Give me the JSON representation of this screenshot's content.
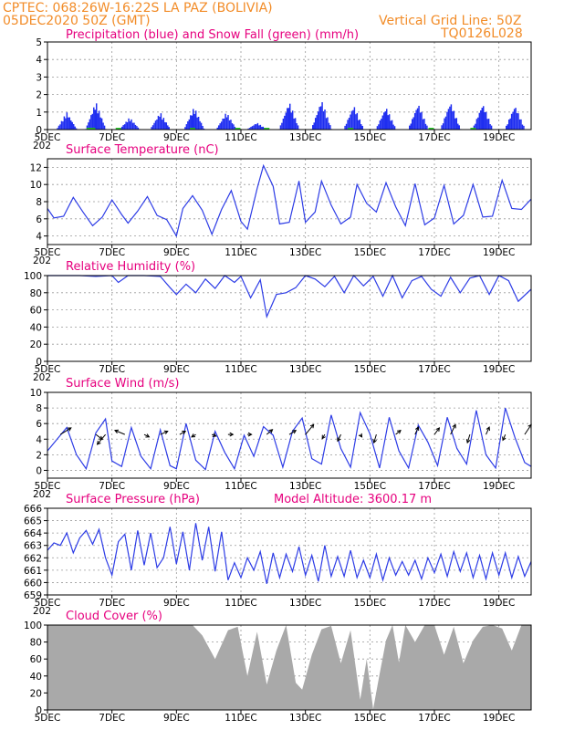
{
  "header": {
    "line1_left": "CPTEC:   068:26W-16:22S   LA PAZ (BOLIVIA)",
    "line2_left": "05DEC2020  50Z  (GMT)",
    "line1_right": "Vertical Grid Line: 50Z",
    "line2_right": "TQ0126L028"
  },
  "colors": {
    "header": "#f28c28",
    "title": "#e6007e",
    "line": "#2d3ce6",
    "precip": "#1f2ef0",
    "snow": "#22c522",
    "cloud": "#a9a9a9"
  },
  "x_axis": {
    "range_days": [
      5,
      20
    ],
    "tick_labels": [
      "5DEC",
      "7DEC",
      "9DEC",
      "11DEC",
      "13DEC",
      "15DEC",
      "17DEC",
      "19DEC"
    ],
    "tick_days": [
      5,
      7,
      9,
      11,
      13,
      15,
      17,
      19
    ],
    "corner_label": "202"
  },
  "chart_data": [
    {
      "type": "bar",
      "title": "Precipitation (blue) and Snow Fall (green) (mm/h)",
      "ylim": [
        0,
        5
      ],
      "yticks": [
        0,
        1,
        2,
        3,
        4,
        5
      ],
      "daily_peak_day": [
        5.6,
        6.5,
        7.55,
        8.5,
        9.55,
        10.55,
        11.5,
        12.5,
        13.5,
        14.5,
        15.5,
        16.5,
        17.5,
        18.5,
        19.5
      ],
      "daily_peak_value": [
        1.0,
        1.6,
        0.7,
        1.0,
        1.3,
        1.0,
        0.4,
        1.6,
        1.7,
        1.4,
        1.3,
        1.5,
        1.6,
        1.5,
        1.4
      ],
      "snow_days": [
        6.3,
        6.4,
        7.2,
        9.5,
        10.9,
        11.8,
        14.4,
        16.9,
        18.2
      ],
      "snow_value": 0.1
    },
    {
      "type": "line",
      "title": "Surface Temperature (nC)",
      "ylim": [
        3,
        13
      ],
      "yticks": [
        4,
        6,
        8,
        10,
        12
      ],
      "x": [
        5.0,
        5.2,
        5.5,
        5.8,
        6.1,
        6.4,
        6.7,
        7.0,
        7.3,
        7.5,
        7.8,
        8.1,
        8.4,
        8.7,
        9.0,
        9.2,
        9.5,
        9.8,
        10.1,
        10.4,
        10.7,
        11.0,
        11.2,
        11.5,
        11.7,
        12.0,
        12.2,
        12.5,
        12.8,
        13.0,
        13.3,
        13.5,
        13.8,
        14.1,
        14.4,
        14.6,
        14.9,
        15.2,
        15.5,
        15.8,
        16.1,
        16.4,
        16.7,
        17.0,
        17.3,
        17.6,
        17.9,
        18.2,
        18.5,
        18.8,
        19.1,
        19.4,
        19.7,
        20.0
      ],
      "y": [
        7.2,
        6.1,
        6.3,
        8.5,
        6.8,
        5.2,
        6.2,
        8.2,
        6.5,
        5.5,
        6.9,
        8.6,
        6.4,
        5.9,
        4.0,
        7.2,
        8.7,
        7.0,
        4.2,
        7.1,
        9.3,
        5.7,
        4.8,
        9.5,
        12.2,
        9.8,
        5.4,
        5.6,
        10.4,
        5.6,
        6.8,
        10.4,
        7.6,
        5.4,
        6.2,
        10.0,
        7.8,
        6.8,
        10.2,
        7.4,
        5.2,
        10.1,
        5.3,
        6.1,
        9.9,
        5.4,
        6.4,
        10.0,
        6.2,
        6.3,
        10.5,
        7.2,
        7.1,
        8.3
      ]
    },
    {
      "type": "line",
      "title": "Relative Humidity (%)",
      "ylim": [
        0,
        100
      ],
      "yticks": [
        0,
        20,
        40,
        60,
        80,
        100
      ],
      "x": [
        5.0,
        5.5,
        6.0,
        6.5,
        7.0,
        7.2,
        7.5,
        8.0,
        8.5,
        8.8,
        9.0,
        9.3,
        9.6,
        9.9,
        10.2,
        10.5,
        10.8,
        11.0,
        11.3,
        11.6,
        11.8,
        12.1,
        12.4,
        12.7,
        13.0,
        13.3,
        13.6,
        13.9,
        14.2,
        14.5,
        14.8,
        15.1,
        15.4,
        15.7,
        16.0,
        16.3,
        16.6,
        16.9,
        17.2,
        17.5,
        17.8,
        18.1,
        18.4,
        18.7,
        19.0,
        19.3,
        19.6,
        20.0
      ],
      "y": [
        100,
        100,
        100,
        99,
        100,
        92,
        100,
        100,
        99,
        86,
        78,
        90,
        80,
        96,
        85,
        100,
        92,
        99,
        74,
        95,
        52,
        78,
        80,
        86,
        100,
        96,
        87,
        99,
        80,
        100,
        88,
        99,
        76,
        100,
        74,
        94,
        99,
        84,
        76,
        98,
        80,
        97,
        100,
        78,
        100,
        94,
        70,
        84
      ]
    },
    {
      "type": "line",
      "title": "Surface Wind (m/s)",
      "ylim": [
        -1,
        10
      ],
      "yticks": [
        0,
        2,
        4,
        6,
        8,
        10
      ],
      "x": [
        5.0,
        5.3,
        5.6,
        5.9,
        6.2,
        6.5,
        6.8,
        7.0,
        7.3,
        7.6,
        7.9,
        8.2,
        8.5,
        8.8,
        9.0,
        9.3,
        9.6,
        9.9,
        10.2,
        10.5,
        10.8,
        11.1,
        11.4,
        11.7,
        12.0,
        12.3,
        12.6,
        12.9,
        13.2,
        13.5,
        13.8,
        14.1,
        14.4,
        14.7,
        15.0,
        15.3,
        15.6,
        15.9,
        16.2,
        16.5,
        16.8,
        17.1,
        17.4,
        17.7,
        18.0,
        18.3,
        18.6,
        18.9,
        19.2,
        19.5,
        19.8,
        20.0
      ],
      "y": [
        2.5,
        4.0,
        5.5,
        2.0,
        0.2,
        4.8,
        6.6,
        1.2,
        0.5,
        5.5,
        1.8,
        0.2,
        5.2,
        0.6,
        0.2,
        6.0,
        1.3,
        0.1,
        5.0,
        2.3,
        0.2,
        4.5,
        1.8,
        5.6,
        4.5,
        0.4,
        5.0,
        6.7,
        1.5,
        0.8,
        7.1,
        2.8,
        0.4,
        7.4,
        4.7,
        0.3,
        6.8,
        2.5,
        0.3,
        5.8,
        3.6,
        0.6,
        6.8,
        2.8,
        0.8,
        7.7,
        2.0,
        0.3,
        8.0,
        4.2,
        1.0,
        0.5
      ],
      "arrow_days": [
        5.4,
        6.5,
        6.8,
        7.4,
        8.0,
        8.5,
        9.1,
        9.6,
        10.1,
        10.6,
        11.2,
        11.8,
        12.5,
        13.0,
        13.6,
        14.1,
        14.7,
        15.2,
        15.8,
        16.4,
        17.0,
        17.5,
        18.1,
        18.6,
        19.2,
        19.8
      ],
      "arrow_u": [
        1.3,
        0.8,
        -1.0,
        -1.2,
        0.6,
        0.9,
        0.7,
        -0.5,
        0.5,
        0.6,
        0.5,
        0.7,
        0.8,
        1.0,
        -0.3,
        -0.4,
        0.2,
        -0.3,
        0.6,
        0.4,
        0.6,
        0.6,
        -0.3,
        0.4,
        -0.3,
        0.8
      ],
      "arrow_v": [
        0.8,
        -0.6,
        -1.2,
        0.5,
        -0.3,
        0.4,
        0.4,
        -0.3,
        -0.2,
        0.0,
        0.0,
        0.6,
        0.5,
        1.2,
        -0.5,
        -0.8,
        -0.3,
        -1.0,
        0.5,
        0.9,
        0.8,
        1.2,
        -1.0,
        0.9,
        -0.7,
        1.2
      ]
    },
    {
      "type": "line",
      "title": "Surface Pressure (hPa)",
      "subtitle": "Model Altitude: 3600.17 m",
      "ylim": [
        659,
        666
      ],
      "yticks": [
        659,
        660,
        661,
        662,
        663,
        664,
        665,
        666
      ],
      "x": [
        5.0,
        5.2,
        5.4,
        5.6,
        5.8,
        6.0,
        6.2,
        6.4,
        6.6,
        6.8,
        7.0,
        7.2,
        7.4,
        7.6,
        7.8,
        8.0,
        8.2,
        8.4,
        8.6,
        8.8,
        9.0,
        9.2,
        9.4,
        9.6,
        9.8,
        10.0,
        10.2,
        10.4,
        10.6,
        10.8,
        11.0,
        11.2,
        11.4,
        11.6,
        11.8,
        12.0,
        12.2,
        12.4,
        12.6,
        12.8,
        13.0,
        13.2,
        13.4,
        13.6,
        13.8,
        14.0,
        14.2,
        14.4,
        14.6,
        14.8,
        15.0,
        15.2,
        15.4,
        15.6,
        15.8,
        16.0,
        16.2,
        16.4,
        16.6,
        16.8,
        17.0,
        17.2,
        17.4,
        17.6,
        17.8,
        18.0,
        18.2,
        18.4,
        18.6,
        18.8,
        19.0,
        19.2,
        19.4,
        19.6,
        19.8,
        20.0
      ],
      "y": [
        662.6,
        663.2,
        663.0,
        664.0,
        662.4,
        663.6,
        664.2,
        663.1,
        664.3,
        662.0,
        660.6,
        663.3,
        663.9,
        661.0,
        664.2,
        661.4,
        664.0,
        661.2,
        662.0,
        664.5,
        661.5,
        664.1,
        661.0,
        664.8,
        661.8,
        664.5,
        660.9,
        664.1,
        660.2,
        661.6,
        660.4,
        662.0,
        661.0,
        662.5,
        659.9,
        662.4,
        660.4,
        662.3,
        660.9,
        662.9,
        660.6,
        662.2,
        660.1,
        663.0,
        660.5,
        662.1,
        660.5,
        662.6,
        660.4,
        661.8,
        660.4,
        662.3,
        660.2,
        662.0,
        660.6,
        661.7,
        660.6,
        661.8,
        660.3,
        662.0,
        660.8,
        662.3,
        660.5,
        662.5,
        660.9,
        662.4,
        660.4,
        662.2,
        660.3,
        662.4,
        660.6,
        662.4,
        660.4,
        662.1,
        660.5,
        661.7
      ]
    },
    {
      "type": "area",
      "title": "Cloud Cover (%)",
      "ylim": [
        0,
        100
      ],
      "yticks": [
        0,
        20,
        40,
        60,
        80,
        100
      ],
      "x": [
        5.0,
        9.5,
        9.8,
        10.2,
        10.6,
        10.9,
        11.2,
        11.5,
        11.8,
        12.1,
        12.4,
        12.7,
        12.9,
        13.2,
        13.5,
        13.8,
        14.1,
        14.4,
        14.7,
        14.9,
        15.1,
        15.3,
        15.5,
        15.7,
        15.9,
        16.1,
        16.4,
        16.7,
        17.0,
        17.3,
        17.6,
        17.9,
        18.2,
        18.5,
        18.8,
        19.1,
        19.4,
        19.7,
        20.0
      ],
      "y": [
        100,
        100,
        88,
        60,
        94,
        98,
        40,
        92,
        30,
        70,
        100,
        32,
        24,
        65,
        95,
        99,
        55,
        94,
        12,
        60,
        1,
        42,
        82,
        100,
        56,
        100,
        80,
        100,
        100,
        65,
        98,
        55,
        82,
        98,
        100,
        96,
        70,
        100,
        100
      ]
    }
  ]
}
